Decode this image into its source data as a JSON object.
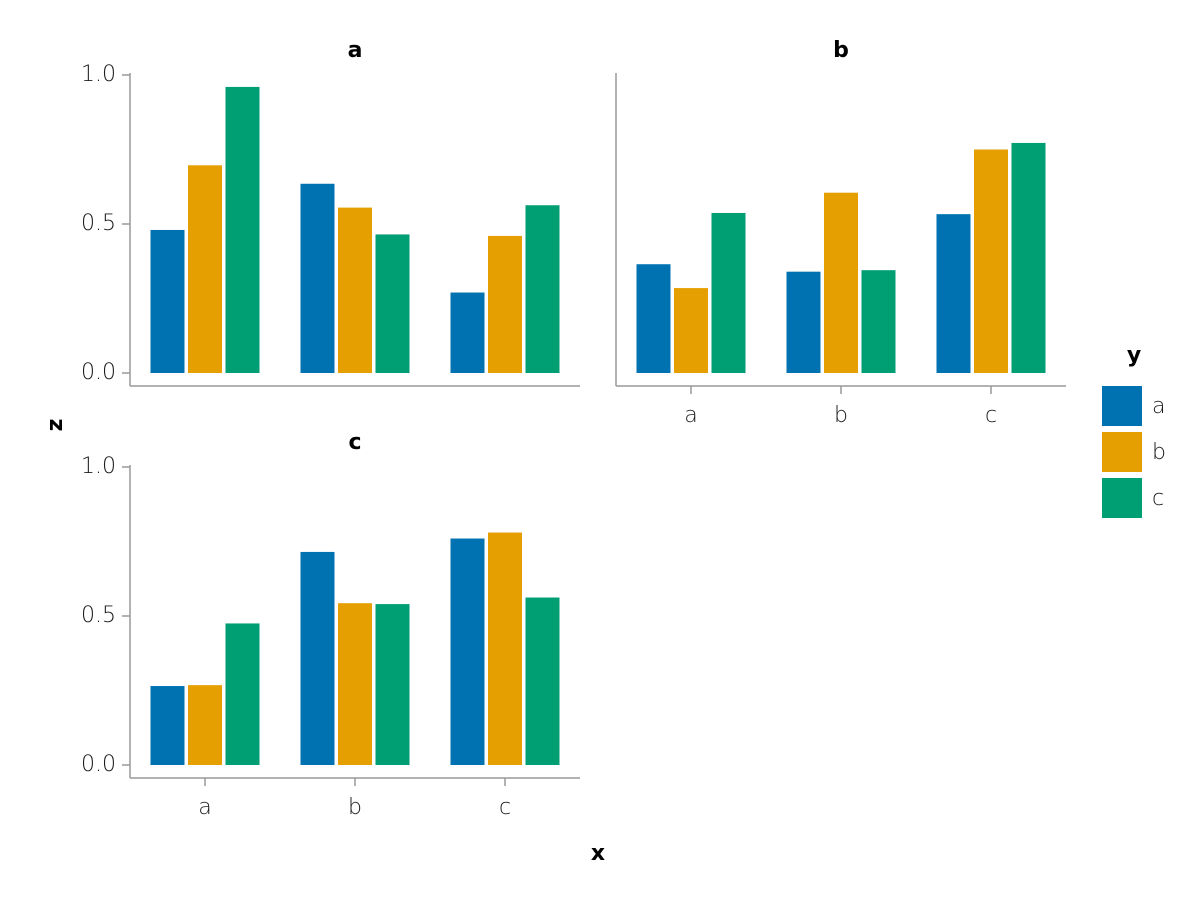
{
  "chart_data": {
    "type": "bar",
    "grouped": true,
    "xlabel": "x",
    "ylabel": "z",
    "ylim": [
      0,
      1
    ],
    "yticks": [
      "0.0",
      "0.5",
      "1.0"
    ],
    "categories": [
      "a",
      "b",
      "c"
    ],
    "legend": {
      "title": "y",
      "placement": "right",
      "entries": [
        {
          "label": "a",
          "color": "#0072B2"
        },
        {
          "label": "b",
          "color": "#E69F00"
        },
        {
          "label": "c",
          "color": "#009E73"
        }
      ]
    },
    "facets": [
      {
        "title": "a",
        "series": [
          {
            "name": "a",
            "values": [
              0.48,
              0.635,
              0.27
            ]
          },
          {
            "name": "b",
            "values": [
              0.697,
              0.555,
              0.46
            ]
          },
          {
            "name": "c",
            "values": [
              0.96,
              0.465,
              0.563
            ]
          }
        ]
      },
      {
        "title": "b",
        "series": [
          {
            "name": "a",
            "values": [
              0.365,
              0.34,
              0.533
            ]
          },
          {
            "name": "b",
            "values": [
              0.285,
              0.605,
              0.75
            ]
          },
          {
            "name": "c",
            "values": [
              0.537,
              0.345,
              0.772
            ]
          }
        ]
      },
      {
        "title": "c",
        "series": [
          {
            "name": "a",
            "values": [
              0.265,
              0.715,
              0.76
            ]
          },
          {
            "name": "b",
            "values": [
              0.268,
              0.543,
              0.78
            ]
          },
          {
            "name": "c",
            "values": [
              0.475,
              0.54,
              0.562
            ]
          }
        ]
      }
    ]
  }
}
